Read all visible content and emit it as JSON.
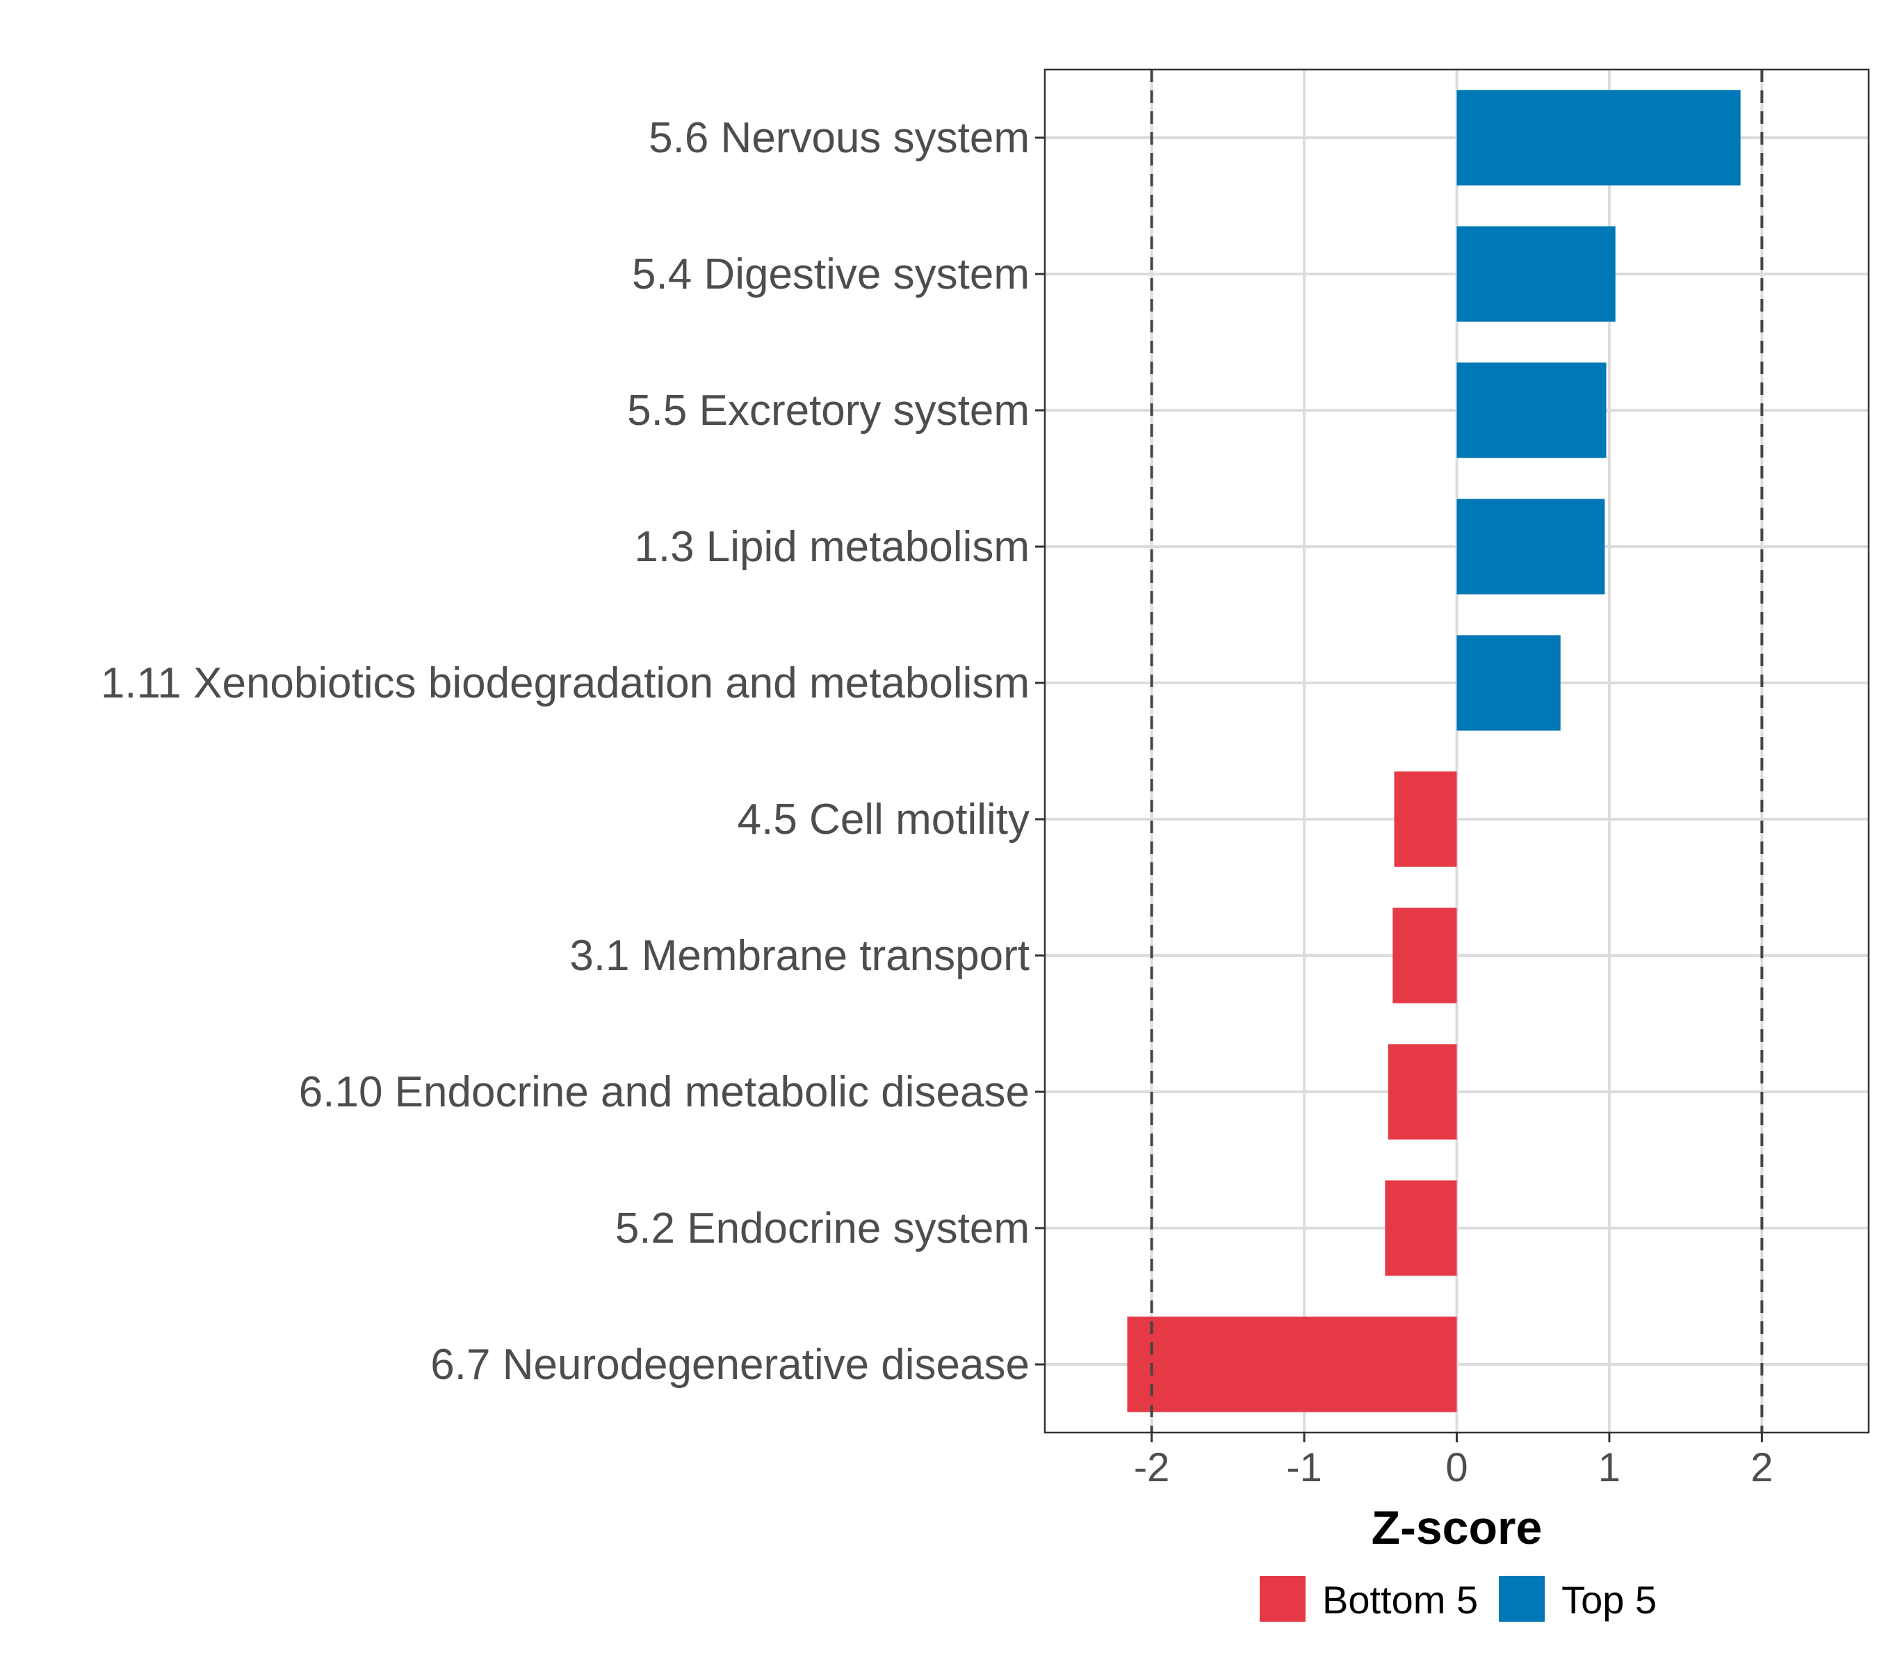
{
  "chart_data": {
    "type": "bar",
    "orientation": "horizontal",
    "categories": [
      "5.6 Nervous system",
      "5.4 Digestive system",
      "5.5 Excretory system",
      "1.3 Lipid metabolism",
      "1.11 Xenobiotics biodegradation and metabolism",
      "4.5 Cell motility",
      "3.1 Membrane transport",
      "6.10 Endocrine and metabolic disease",
      "5.2 Endocrine system",
      "6.7 Neurodegenerative disease"
    ],
    "values": [
      1.86,
      1.04,
      0.98,
      0.97,
      0.68,
      -0.41,
      -0.42,
      -0.45,
      -0.47,
      -2.16
    ],
    "groups": [
      "Top 5",
      "Top 5",
      "Top 5",
      "Top 5",
      "Top 5",
      "Bottom 5",
      "Bottom 5",
      "Bottom 5",
      "Bottom 5",
      "Bottom 5"
    ],
    "xlabel": "Z-score",
    "ylabel": "",
    "xlim": [
      -2.7,
      2.7
    ],
    "xticks": [
      -2,
      -1,
      0,
      1,
      2
    ],
    "xtick_labels": [
      "-2",
      "-1",
      "0",
      "1",
      "2"
    ],
    "reference_lines": [
      -2,
      2
    ],
    "grid": true,
    "legend": {
      "position": "bottom",
      "entries": [
        {
          "label": "Bottom 5",
          "color": "#E63946"
        },
        {
          "label": "Top 5",
          "color": "#0077B6"
        }
      ]
    }
  }
}
